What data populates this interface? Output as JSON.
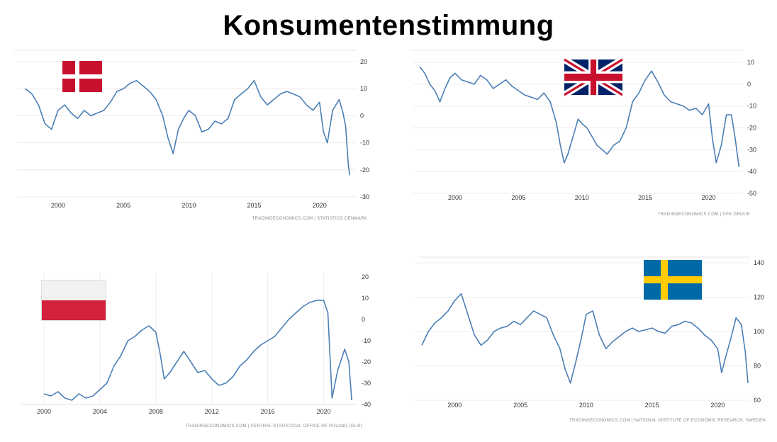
{
  "title": "Konsumentenstimmung",
  "chart_data": [
    {
      "type": "line",
      "country_flag": "denmark-flag",
      "x_ticks": [
        "2000",
        "2005",
        "2010",
        "2015",
        "2020"
      ],
      "y_ticks": [
        "20",
        "10",
        "0",
        "-10",
        "-20",
        "-30"
      ],
      "xlim": [
        1997.4,
        2022.4
      ],
      "ylim": [
        -30,
        20
      ],
      "grid": "horizontal",
      "color": "#4a7fb5",
      "source": "TRADINGECONOMICS.COM  |  STATISTICS DENMARK",
      "x": [
        1997.5,
        1998.0,
        1998.5,
        1999.0,
        1999.5,
        2000.0,
        2000.5,
        2001.0,
        2001.5,
        2002.0,
        2002.5,
        2003.0,
        2003.5,
        2004.0,
        2004.5,
        2005.0,
        2005.5,
        2006.0,
        2006.5,
        2007.0,
        2007.5,
        2008.0,
        2008.4,
        2008.8,
        2009.2,
        2009.6,
        2010.0,
        2010.5,
        2011.0,
        2011.5,
        2012.0,
        2012.5,
        2013.0,
        2013.5,
        2014.0,
        2014.5,
        2015.0,
        2015.5,
        2016.0,
        2016.5,
        2017.0,
        2017.5,
        2018.0,
        2018.5,
        2019.0,
        2019.5,
        2020.0,
        2020.3,
        2020.6,
        2021.0,
        2021.5,
        2021.8,
        2022.0,
        2022.2,
        2022.3
      ],
      "y": [
        10,
        8,
        4,
        -3,
        -5,
        2,
        4,
        1,
        -1,
        2,
        0,
        1,
        2,
        5,
        9,
        10,
        12,
        13,
        11,
        9,
        6,
        0,
        -8,
        -14,
        -5,
        -1,
        2,
        0,
        -6,
        -5,
        -2,
        -3,
        -1,
        6,
        8,
        10,
        13,
        7,
        4,
        6,
        8,
        9,
        8,
        7,
        4,
        2,
        5,
        -6,
        -10,
        2,
        6,
        1,
        -4,
        -18,
        -22
      ]
    },
    {
      "type": "line",
      "country_flag": "united-kingdom-flag",
      "x_ticks": [
        "2000",
        "2005",
        "2010",
        "2015",
        "2020"
      ],
      "y_ticks": [
        "10",
        "0",
        "-10",
        "-20",
        "-30",
        "-40",
        "-50"
      ],
      "xlim": [
        1997.2,
        2022.6
      ],
      "ylim": [
        -50,
        10
      ],
      "grid": "horizontal",
      "color": "#4a7fb5",
      "source": "TRADINGECONOMICS.COM  |  GFK GROUP",
      "x": [
        1997.2,
        1997.6,
        1998.0,
        1998.4,
        1998.8,
        1999.2,
        1999.6,
        2000.0,
        2000.5,
        2001.0,
        2001.5,
        2002.0,
        2002.5,
        2003.0,
        2003.5,
        2004.0,
        2004.5,
        2005.0,
        2005.5,
        2006.0,
        2006.5,
        2007.0,
        2007.5,
        2008.0,
        2008.3,
        2008.6,
        2008.9,
        2009.3,
        2009.7,
        2010.0,
        2010.4,
        2010.8,
        2011.2,
        2011.6,
        2012.0,
        2012.5,
        2013.0,
        2013.5,
        2014.0,
        2014.5,
        2015.0,
        2015.5,
        2016.0,
        2016.5,
        2017.0,
        2017.5,
        2018.0,
        2018.5,
        2019.0,
        2019.5,
        2020.0,
        2020.3,
        2020.6,
        2021.0,
        2021.4,
        2021.8,
        2022.1,
        2022.4
      ],
      "y": [
        8,
        5,
        0,
        -3,
        -8,
        -2,
        3,
        5,
        2,
        1,
        0,
        4,
        2,
        -2,
        0,
        2,
        -1,
        -3,
        -5,
        -6,
        -7,
        -4,
        -8,
        -18,
        -28,
        -36,
        -32,
        -24,
        -16,
        -18,
        -20,
        -24,
        -28,
        -30,
        -32,
        -28,
        -26,
        -20,
        -8,
        -4,
        2,
        6,
        1,
        -5,
        -8,
        -9,
        -10,
        -12,
        -11,
        -14,
        -9,
        -25,
        -36,
        -28,
        -14,
        -14,
        -25,
        -38
      ]
    },
    {
      "type": "line",
      "country_flag": "poland-flag",
      "x_ticks": [
        "2000",
        "2004",
        "2008",
        "2012",
        "2016",
        "2020"
      ],
      "y_ticks": [
        "20",
        "10",
        "0",
        "-10",
        "-20",
        "-30",
        "-40"
      ],
      "xlim": [
        2000,
        2022.2
      ],
      "ylim": [
        -40,
        20
      ],
      "grid": "vertical",
      "color": "#4a7fb5",
      "source": "TRADINGECONOMICS.COM  |  CENTRAL STATISTICAL OFFICE OF POLAND (GUS)",
      "x": [
        2000.0,
        2000.5,
        2001.0,
        2001.5,
        2002.0,
        2002.5,
        2003.0,
        2003.5,
        2004.0,
        2004.5,
        2005.0,
        2005.5,
        2006.0,
        2006.5,
        2007.0,
        2007.5,
        2008.0,
        2008.3,
        2008.6,
        2009.0,
        2009.5,
        2010.0,
        2010.5,
        2011.0,
        2011.5,
        2012.0,
        2012.5,
        2013.0,
        2013.5,
        2014.0,
        2014.5,
        2015.0,
        2015.5,
        2016.0,
        2016.5,
        2017.0,
        2017.5,
        2018.0,
        2018.5,
        2019.0,
        2019.5,
        2020.0,
        2020.3,
        2020.6,
        2021.0,
        2021.5,
        2021.8,
        2022.0
      ],
      "y": [
        -35,
        -36,
        -34,
        -37,
        -38,
        -35,
        -37,
        -36,
        -33,
        -30,
        -22,
        -17,
        -10,
        -8,
        -5,
        -3,
        -6,
        -16,
        -28,
        -25,
        -20,
        -15,
        -20,
        -25,
        -24,
        -28,
        -31,
        -30,
        -27,
        -22,
        -19,
        -15,
        -12,
        -10,
        -8,
        -4,
        0,
        3,
        6,
        8,
        9,
        9,
        3,
        -37,
        -24,
        -14,
        -20,
        -38
      ]
    },
    {
      "type": "line",
      "country_flag": "sweden-flag",
      "x_ticks": [
        "2000",
        "2005",
        "2010",
        "2015",
        "2020"
      ],
      "y_ticks": [
        "140",
        "120",
        "100",
        "80",
        "60"
      ],
      "xlim": [
        1997.5,
        2022.3
      ],
      "ylim": [
        60,
        140
      ],
      "grid": "horizontal",
      "color": "#4a7fb5",
      "source": "TRADINGECONOMICS.COM  |  NATIONAL INSTITUTE OF ECONOMIC RESEARCH, SWEDEN",
      "x": [
        1997.5,
        1998.0,
        1998.5,
        1999.0,
        1999.5,
        2000.0,
        2000.5,
        2001.0,
        2001.5,
        2002.0,
        2002.5,
        2003.0,
        2003.5,
        2004.0,
        2004.5,
        2005.0,
        2005.5,
        2006.0,
        2006.5,
        2007.0,
        2007.5,
        2008.0,
        2008.4,
        2008.8,
        2009.2,
        2009.6,
        2010.0,
        2010.5,
        2011.0,
        2011.5,
        2012.0,
        2012.5,
        2013.0,
        2013.5,
        2014.0,
        2014.5,
        2015.0,
        2015.5,
        2016.0,
        2016.5,
        2017.0,
        2017.5,
        2018.0,
        2018.5,
        2019.0,
        2019.5,
        2020.0,
        2020.3,
        2020.6,
        2021.0,
        2021.4,
        2021.8,
        2022.1,
        2022.3
      ],
      "y": [
        92,
        100,
        105,
        108,
        112,
        118,
        122,
        110,
        98,
        92,
        95,
        100,
        102,
        103,
        106,
        104,
        108,
        112,
        110,
        108,
        98,
        90,
        78,
        70,
        82,
        95,
        110,
        112,
        98,
        90,
        94,
        97,
        100,
        102,
        100,
        101,
        102,
        100,
        99,
        103,
        104,
        106,
        105,
        102,
        98,
        95,
        90,
        76,
        85,
        96,
        108,
        104,
        88,
        70
      ]
    }
  ]
}
